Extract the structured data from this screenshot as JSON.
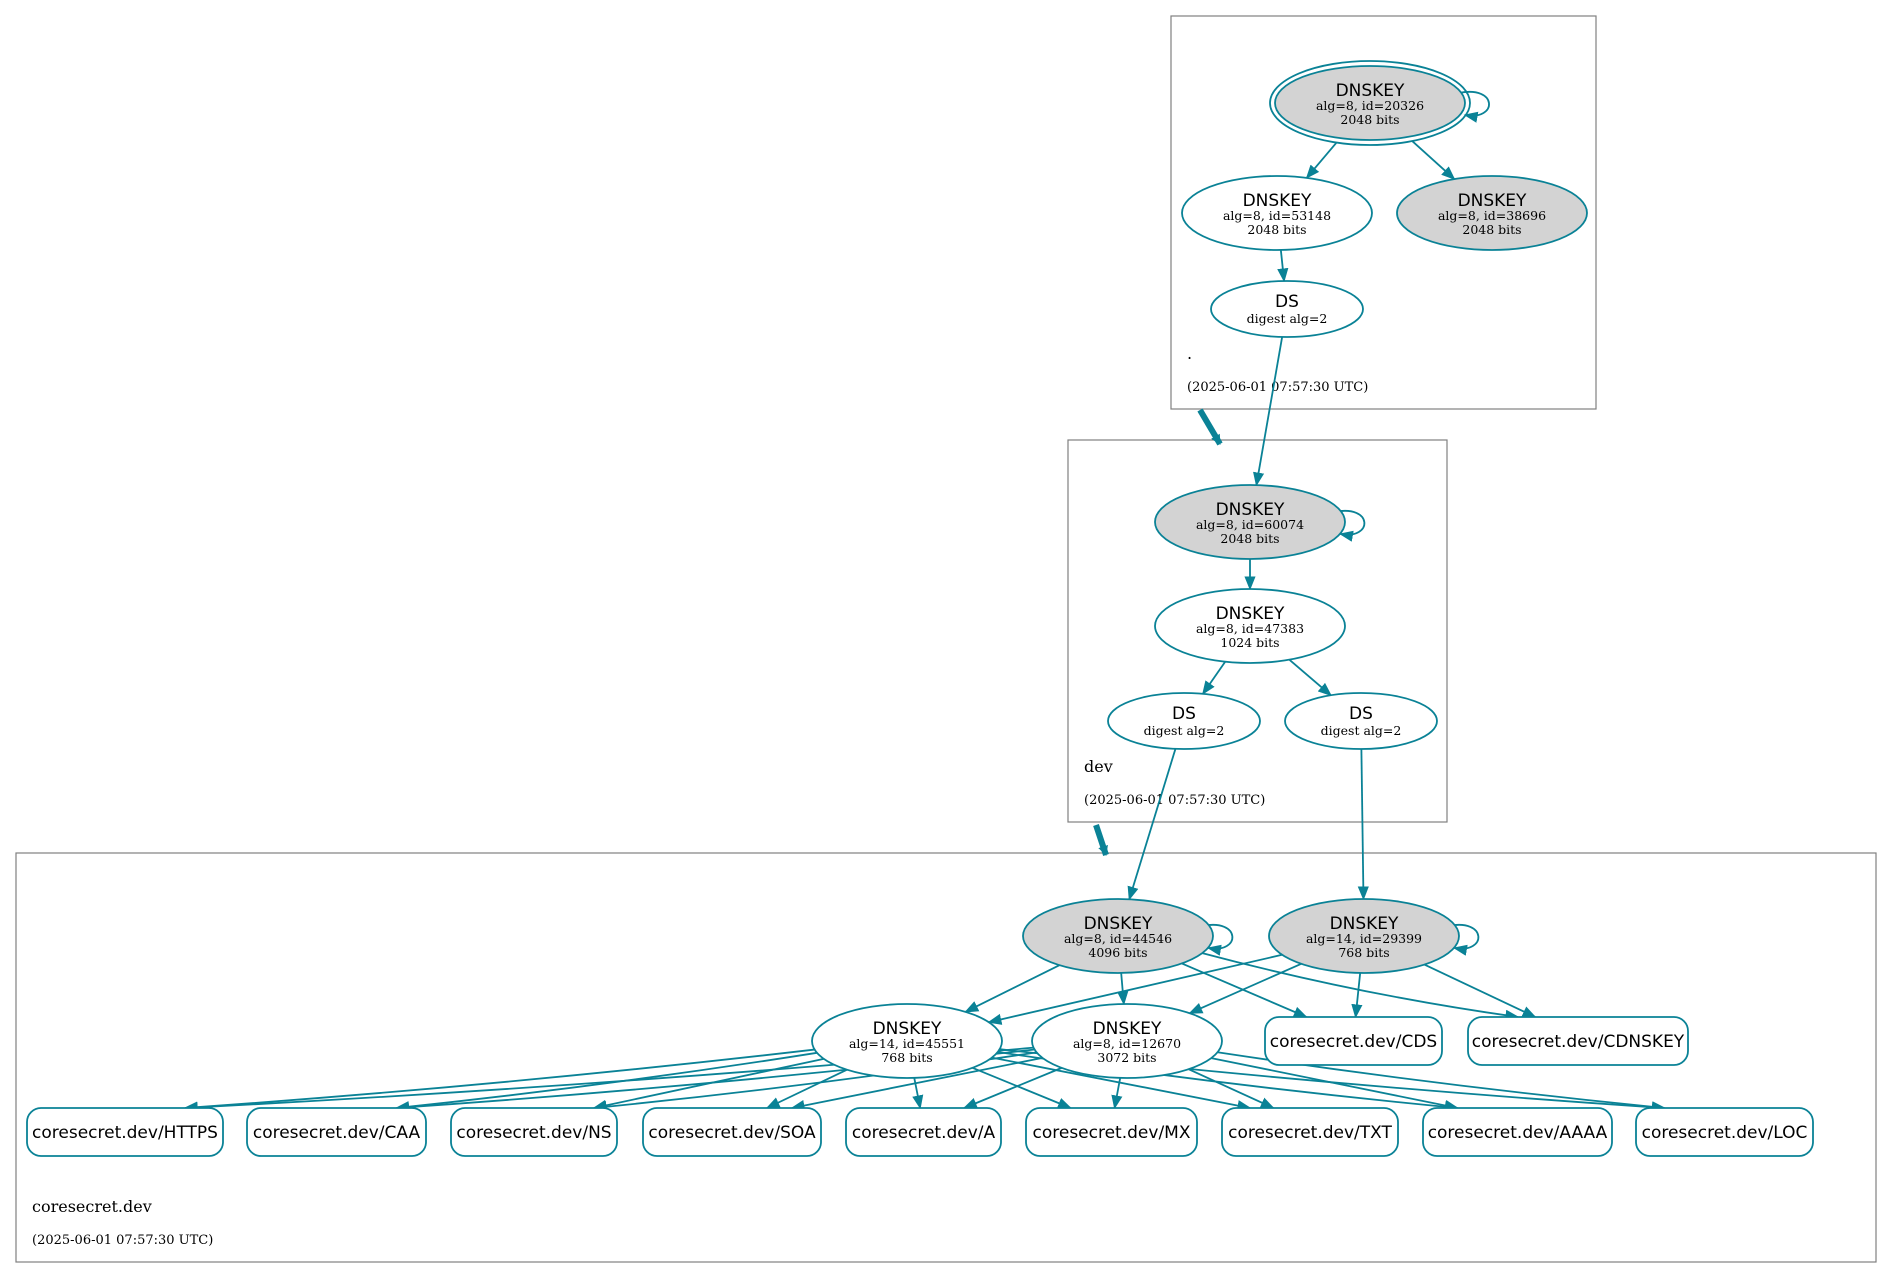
{
  "colors": {
    "edge": "#0a8296",
    "secure_fill": "#d3d3d3",
    "node_fill": "#ffffff",
    "cluster_border": "#808080"
  },
  "zones": [
    {
      "id": "root",
      "name": ".",
      "timestamp": "(2025-06-01 07:57:30 UTC)"
    },
    {
      "id": "dev",
      "name": "dev",
      "timestamp": "(2025-06-01 07:57:30 UTC)"
    },
    {
      "id": "cs",
      "name": "coresecret.dev",
      "timestamp": "(2025-06-01 07:57:30 UTC)"
    }
  ],
  "nodes": [
    {
      "id": "k20326",
      "type": "DNSKEY",
      "l1": "alg=8, id=20326",
      "l2": "2048 bits",
      "secure_entry": true,
      "trust_anchor": true
    },
    {
      "id": "k53148",
      "type": "DNSKEY",
      "l1": "alg=8, id=53148",
      "l2": "2048 bits",
      "secure_entry": false
    },
    {
      "id": "k38696",
      "type": "DNSKEY",
      "l1": "alg=8, id=38696",
      "l2": "2048 bits",
      "secure_entry": true
    },
    {
      "id": "dsroot",
      "type": "DS",
      "l1": "digest alg=2",
      "l2": ""
    },
    {
      "id": "k60074",
      "type": "DNSKEY",
      "l1": "alg=8, id=60074",
      "l2": "2048 bits",
      "secure_entry": true
    },
    {
      "id": "k47383",
      "type": "DNSKEY",
      "l1": "alg=8, id=47383",
      "l2": "1024 bits",
      "secure_entry": false
    },
    {
      "id": "dsdev1",
      "type": "DS",
      "l1": "digest alg=2",
      "l2": ""
    },
    {
      "id": "dsdev2",
      "type": "DS",
      "l1": "digest alg=2",
      "l2": ""
    },
    {
      "id": "k44546",
      "type": "DNSKEY",
      "l1": "alg=8, id=44546",
      "l2": "4096 bits",
      "secure_entry": true
    },
    {
      "id": "k29399",
      "type": "DNSKEY",
      "l1": "alg=14, id=29399",
      "l2": "768 bits",
      "secure_entry": true
    },
    {
      "id": "k45551",
      "type": "DNSKEY",
      "l1": "alg=14, id=45551",
      "l2": "768 bits",
      "secure_entry": false
    },
    {
      "id": "k12670",
      "type": "DNSKEY",
      "l1": "alg=8, id=12670",
      "l2": "3072 bits",
      "secure_entry": false
    }
  ],
  "rrsets": [
    {
      "id": "CDS",
      "label": "coresecret.dev/CDS"
    },
    {
      "id": "CDNSKEY",
      "label": "coresecret.dev/CDNSKEY"
    },
    {
      "id": "HTTPS",
      "label": "coresecret.dev/HTTPS"
    },
    {
      "id": "CAA",
      "label": "coresecret.dev/CAA"
    },
    {
      "id": "NS",
      "label": "coresecret.dev/NS"
    },
    {
      "id": "SOA",
      "label": "coresecret.dev/SOA"
    },
    {
      "id": "A",
      "label": "coresecret.dev/A"
    },
    {
      "id": "MX",
      "label": "coresecret.dev/MX"
    },
    {
      "id": "TXT",
      "label": "coresecret.dev/TXT"
    },
    {
      "id": "AAAA",
      "label": "coresecret.dev/AAAA"
    },
    {
      "id": "LOC",
      "label": "coresecret.dev/LOC"
    }
  ],
  "edges": [
    [
      "k20326",
      "k20326"
    ],
    [
      "k20326",
      "k53148"
    ],
    [
      "k20326",
      "k38696"
    ],
    [
      "k53148",
      "dsroot"
    ],
    [
      "dsroot",
      "k60074"
    ],
    [
      "k60074",
      "k60074"
    ],
    [
      "k60074",
      "k47383"
    ],
    [
      "k47383",
      "dsdev1"
    ],
    [
      "k47383",
      "dsdev2"
    ],
    [
      "dsdev1",
      "k44546"
    ],
    [
      "dsdev2",
      "k29399"
    ],
    [
      "k44546",
      "k44546"
    ],
    [
      "k29399",
      "k29399"
    ],
    [
      "k44546",
      "k45551"
    ],
    [
      "k44546",
      "k12670"
    ],
    [
      "k44546",
      "CDS"
    ],
    [
      "k44546",
      "CDNSKEY"
    ],
    [
      "k29399",
      "k45551"
    ],
    [
      "k29399",
      "k12670"
    ],
    [
      "k29399",
      "CDS"
    ],
    [
      "k29399",
      "CDNSKEY"
    ],
    [
      "k45551",
      "HTTPS"
    ],
    [
      "k45551",
      "CAA"
    ],
    [
      "k45551",
      "NS"
    ],
    [
      "k45551",
      "SOA"
    ],
    [
      "k45551",
      "A"
    ],
    [
      "k45551",
      "MX"
    ],
    [
      "k45551",
      "TXT"
    ],
    [
      "k45551",
      "AAAA"
    ],
    [
      "k45551",
      "LOC"
    ],
    [
      "k12670",
      "HTTPS"
    ],
    [
      "k12670",
      "CAA"
    ],
    [
      "k12670",
      "NS"
    ],
    [
      "k12670",
      "SOA"
    ],
    [
      "k12670",
      "A"
    ],
    [
      "k12670",
      "MX"
    ],
    [
      "k12670",
      "TXT"
    ],
    [
      "k12670",
      "AAAA"
    ],
    [
      "k12670",
      "LOC"
    ]
  ],
  "delegations": [
    [
      "root",
      "dev"
    ],
    [
      "dev",
      "cs"
    ]
  ]
}
